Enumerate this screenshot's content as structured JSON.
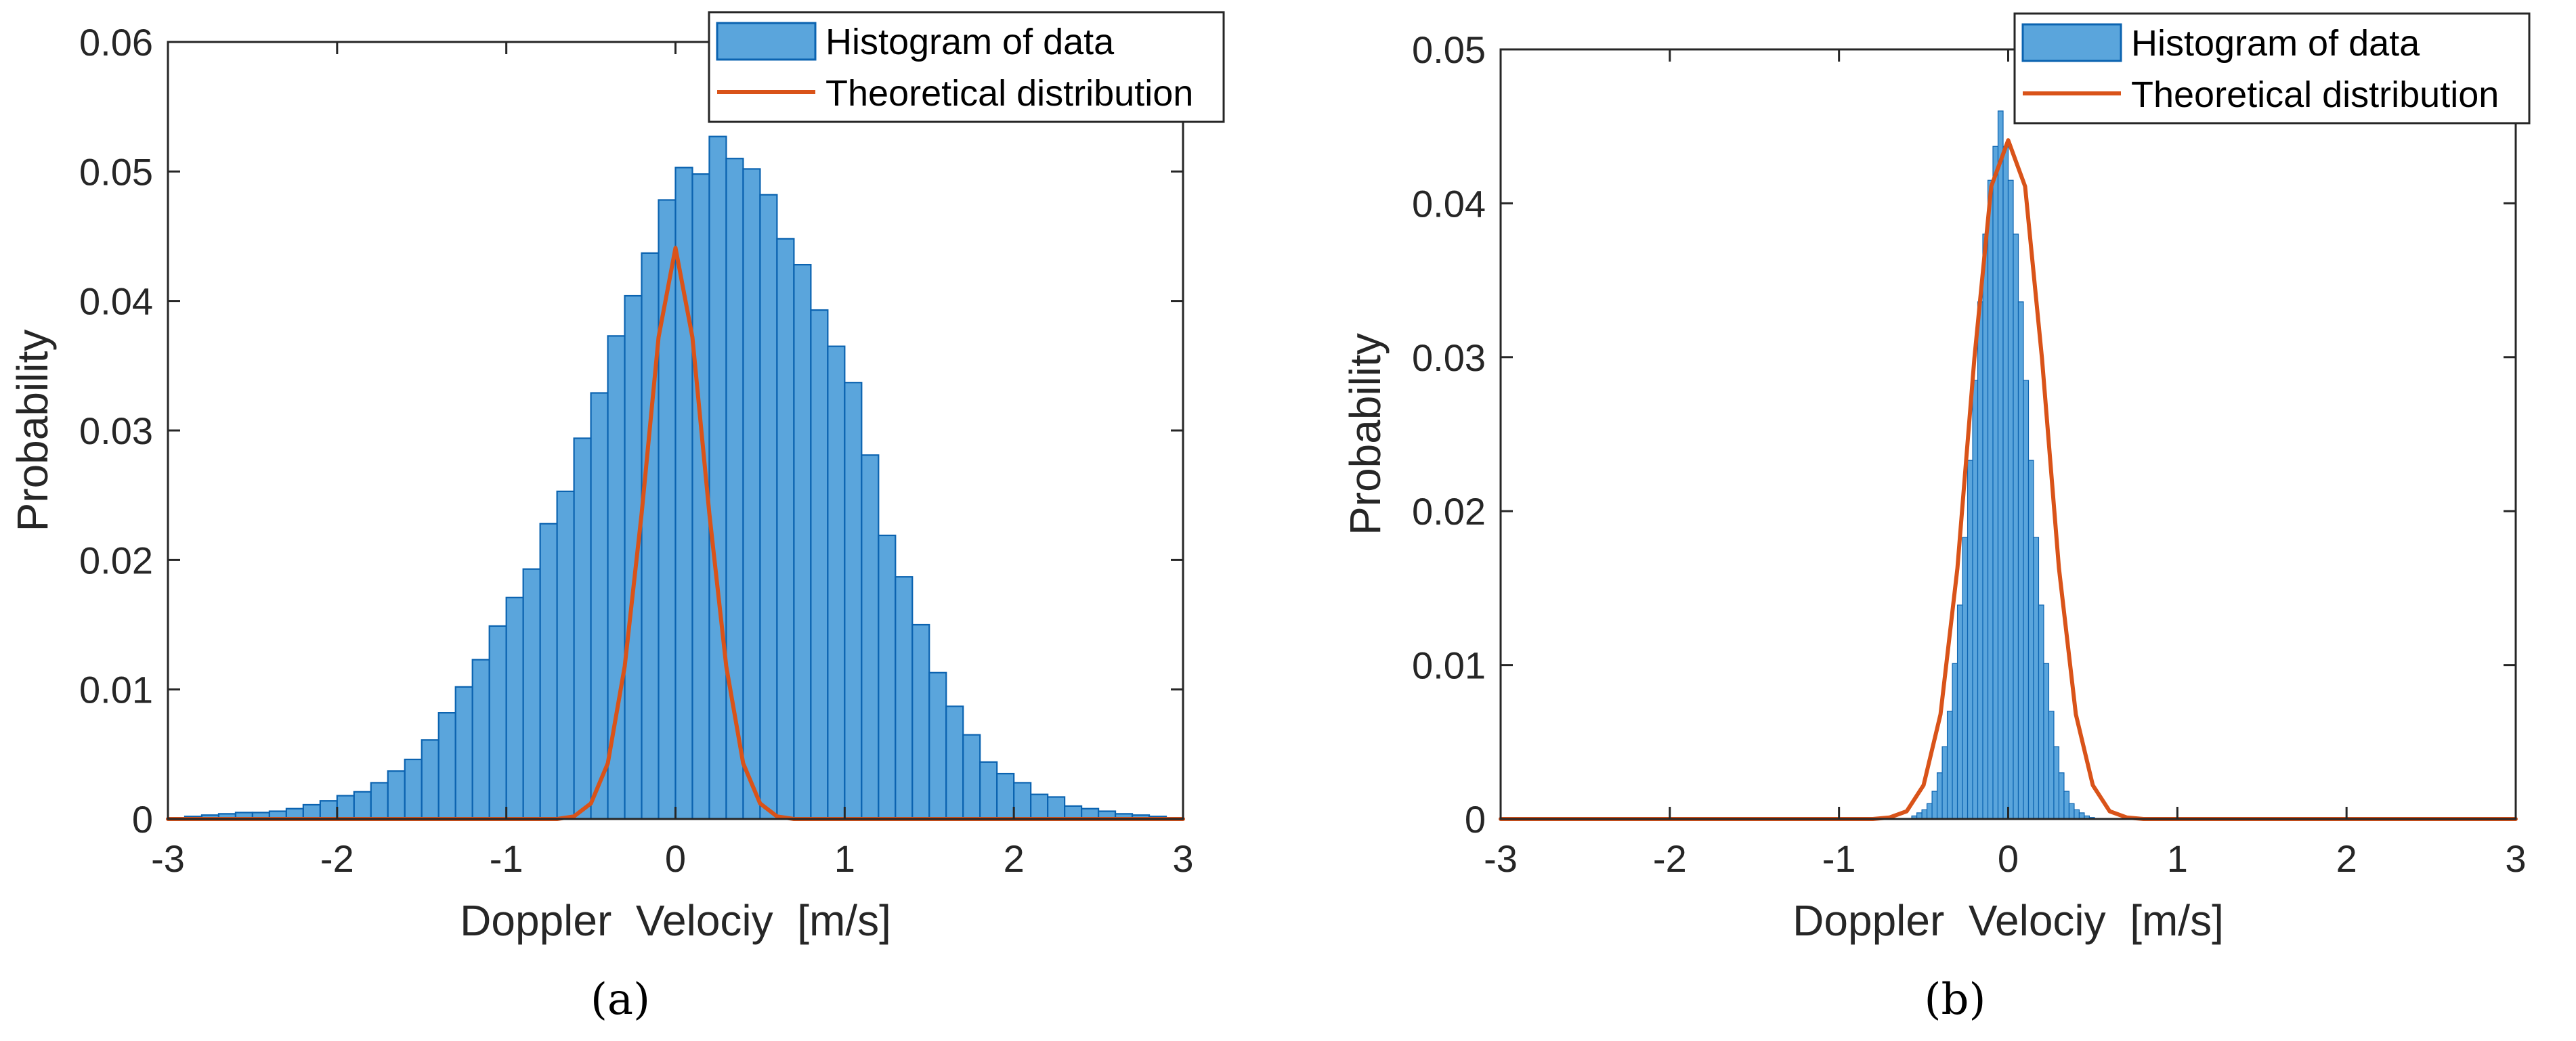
{
  "chart_data": [
    {
      "type": "bar",
      "panel_label": "(a)",
      "xlabel": "Doppler  Velociy  [m/s]",
      "ylabel": "Probability",
      "xlim": [
        -3,
        3
      ],
      "ylim": [
        0,
        0.06
      ],
      "xticks": [
        -3,
        -2,
        -1,
        0,
        1,
        2,
        3
      ],
      "xtick_labels": [
        "-3",
        "-2",
        "-1",
        "0",
        "1",
        "2",
        "3"
      ],
      "yticks": [
        0,
        0.01,
        0.02,
        0.03,
        0.04,
        0.05,
        0.06
      ],
      "ytick_labels": [
        "0",
        "0.01",
        "0.02",
        "0.03",
        "0.04",
        "0.05",
        "0.06"
      ],
      "grid": false,
      "legend_position": "top-right",
      "series": [
        {
          "name": "Histogram of data",
          "kind": "histogram",
          "color": "#5aa5dc",
          "edge_color": "#0b63b0",
          "bin_start": -3.0,
          "bin_width": 0.1,
          "values": [
            0,
            0.0002,
            0.0003,
            0.0004,
            0.0005,
            0.0005,
            0.0006,
            0.0008,
            0.0011,
            0.0014,
            0.0018,
            0.0021,
            0.0028,
            0.0037,
            0.0046,
            0.0061,
            0.0082,
            0.0102,
            0.0123,
            0.0149,
            0.0171,
            0.0193,
            0.0228,
            0.0253,
            0.0294,
            0.0329,
            0.0373,
            0.0404,
            0.0437,
            0.0478,
            0.0503,
            0.0498,
            0.0527,
            0.051,
            0.0502,
            0.0482,
            0.0448,
            0.0428,
            0.0393,
            0.0365,
            0.0337,
            0.0281,
            0.0219,
            0.0187,
            0.015,
            0.0113,
            0.0087,
            0.0065,
            0.0044,
            0.0035,
            0.0028,
            0.0019,
            0.0017,
            0.001,
            0.0008,
            0.0006,
            0.0004,
            0.0003,
            0.0002,
            0.0001
          ]
        },
        {
          "name": "Theoretical distribution",
          "kind": "line",
          "color": "#d95319",
          "x": [
            -3.0,
            -0.7,
            -0.6,
            -0.5,
            -0.4,
            -0.3,
            -0.2,
            -0.1,
            0.0,
            0.1,
            0.2,
            0.3,
            0.4,
            0.5,
            0.6,
            0.7,
            3.0
          ],
          "y": [
            0,
            0.0,
            0.0002,
            0.0012,
            0.0043,
            0.0118,
            0.0236,
            0.0372,
            0.0441,
            0.0372,
            0.0236,
            0.0118,
            0.0043,
            0.0012,
            0.0002,
            0.0,
            0
          ]
        }
      ]
    },
    {
      "type": "bar",
      "panel_label": "(b)",
      "xlabel": "Doppler  Velociy  [m/s]",
      "ylabel": "Probability",
      "xlim": [
        -3,
        3
      ],
      "ylim": [
        0,
        0.05
      ],
      "xticks": [
        -3,
        -2,
        -1,
        0,
        1,
        2,
        3
      ],
      "xtick_labels": [
        "-3",
        "-2",
        "-1",
        "0",
        "1",
        "2",
        "3"
      ],
      "yticks": [
        0,
        0.01,
        0.02,
        0.03,
        0.04,
        0.05
      ],
      "ytick_labels": [
        "0",
        "0.01",
        "0.02",
        "0.03",
        "0.04",
        "0.05"
      ],
      "grid": false,
      "legend_position": "top-right",
      "series": [
        {
          "name": "Histogram of data",
          "kind": "histogram",
          "color": "#5aa5dc",
          "edge_color": "#0b63b0",
          "bin_start": -0.6,
          "bin_width": 0.03,
          "values": [
            0.0,
            0.0002,
            0.0004,
            0.0006,
            0.001,
            0.0018,
            0.003,
            0.0047,
            0.007,
            0.0101,
            0.0139,
            0.0183,
            0.0233,
            0.0285,
            0.0336,
            0.038,
            0.0415,
            0.0437,
            0.046,
            0.0437,
            0.0415,
            0.038,
            0.0336,
            0.0285,
            0.0233,
            0.0183,
            0.0139,
            0.0101,
            0.007,
            0.0047,
            0.003,
            0.0018,
            0.001,
            0.0006,
            0.0004,
            0.0002,
            0.0001,
            0.0,
            0.0,
            0.0
          ]
        },
        {
          "name": "Theoretical distribution",
          "kind": "line",
          "color": "#d95319",
          "x": [
            -3.0,
            -0.8,
            -0.7,
            -0.6,
            -0.5,
            -0.4,
            -0.3,
            -0.2,
            -0.1,
            0.0,
            0.1,
            0.2,
            0.3,
            0.4,
            0.5,
            0.6,
            0.7,
            0.8,
            3.0
          ],
          "y": [
            0,
            0.0,
            0.0001,
            0.0005,
            0.0022,
            0.0068,
            0.0163,
            0.0299,
            0.0411,
            0.0441,
            0.0411,
            0.0299,
            0.0163,
            0.0068,
            0.0022,
            0.0005,
            0.0001,
            0.0,
            0
          ]
        }
      ]
    }
  ]
}
